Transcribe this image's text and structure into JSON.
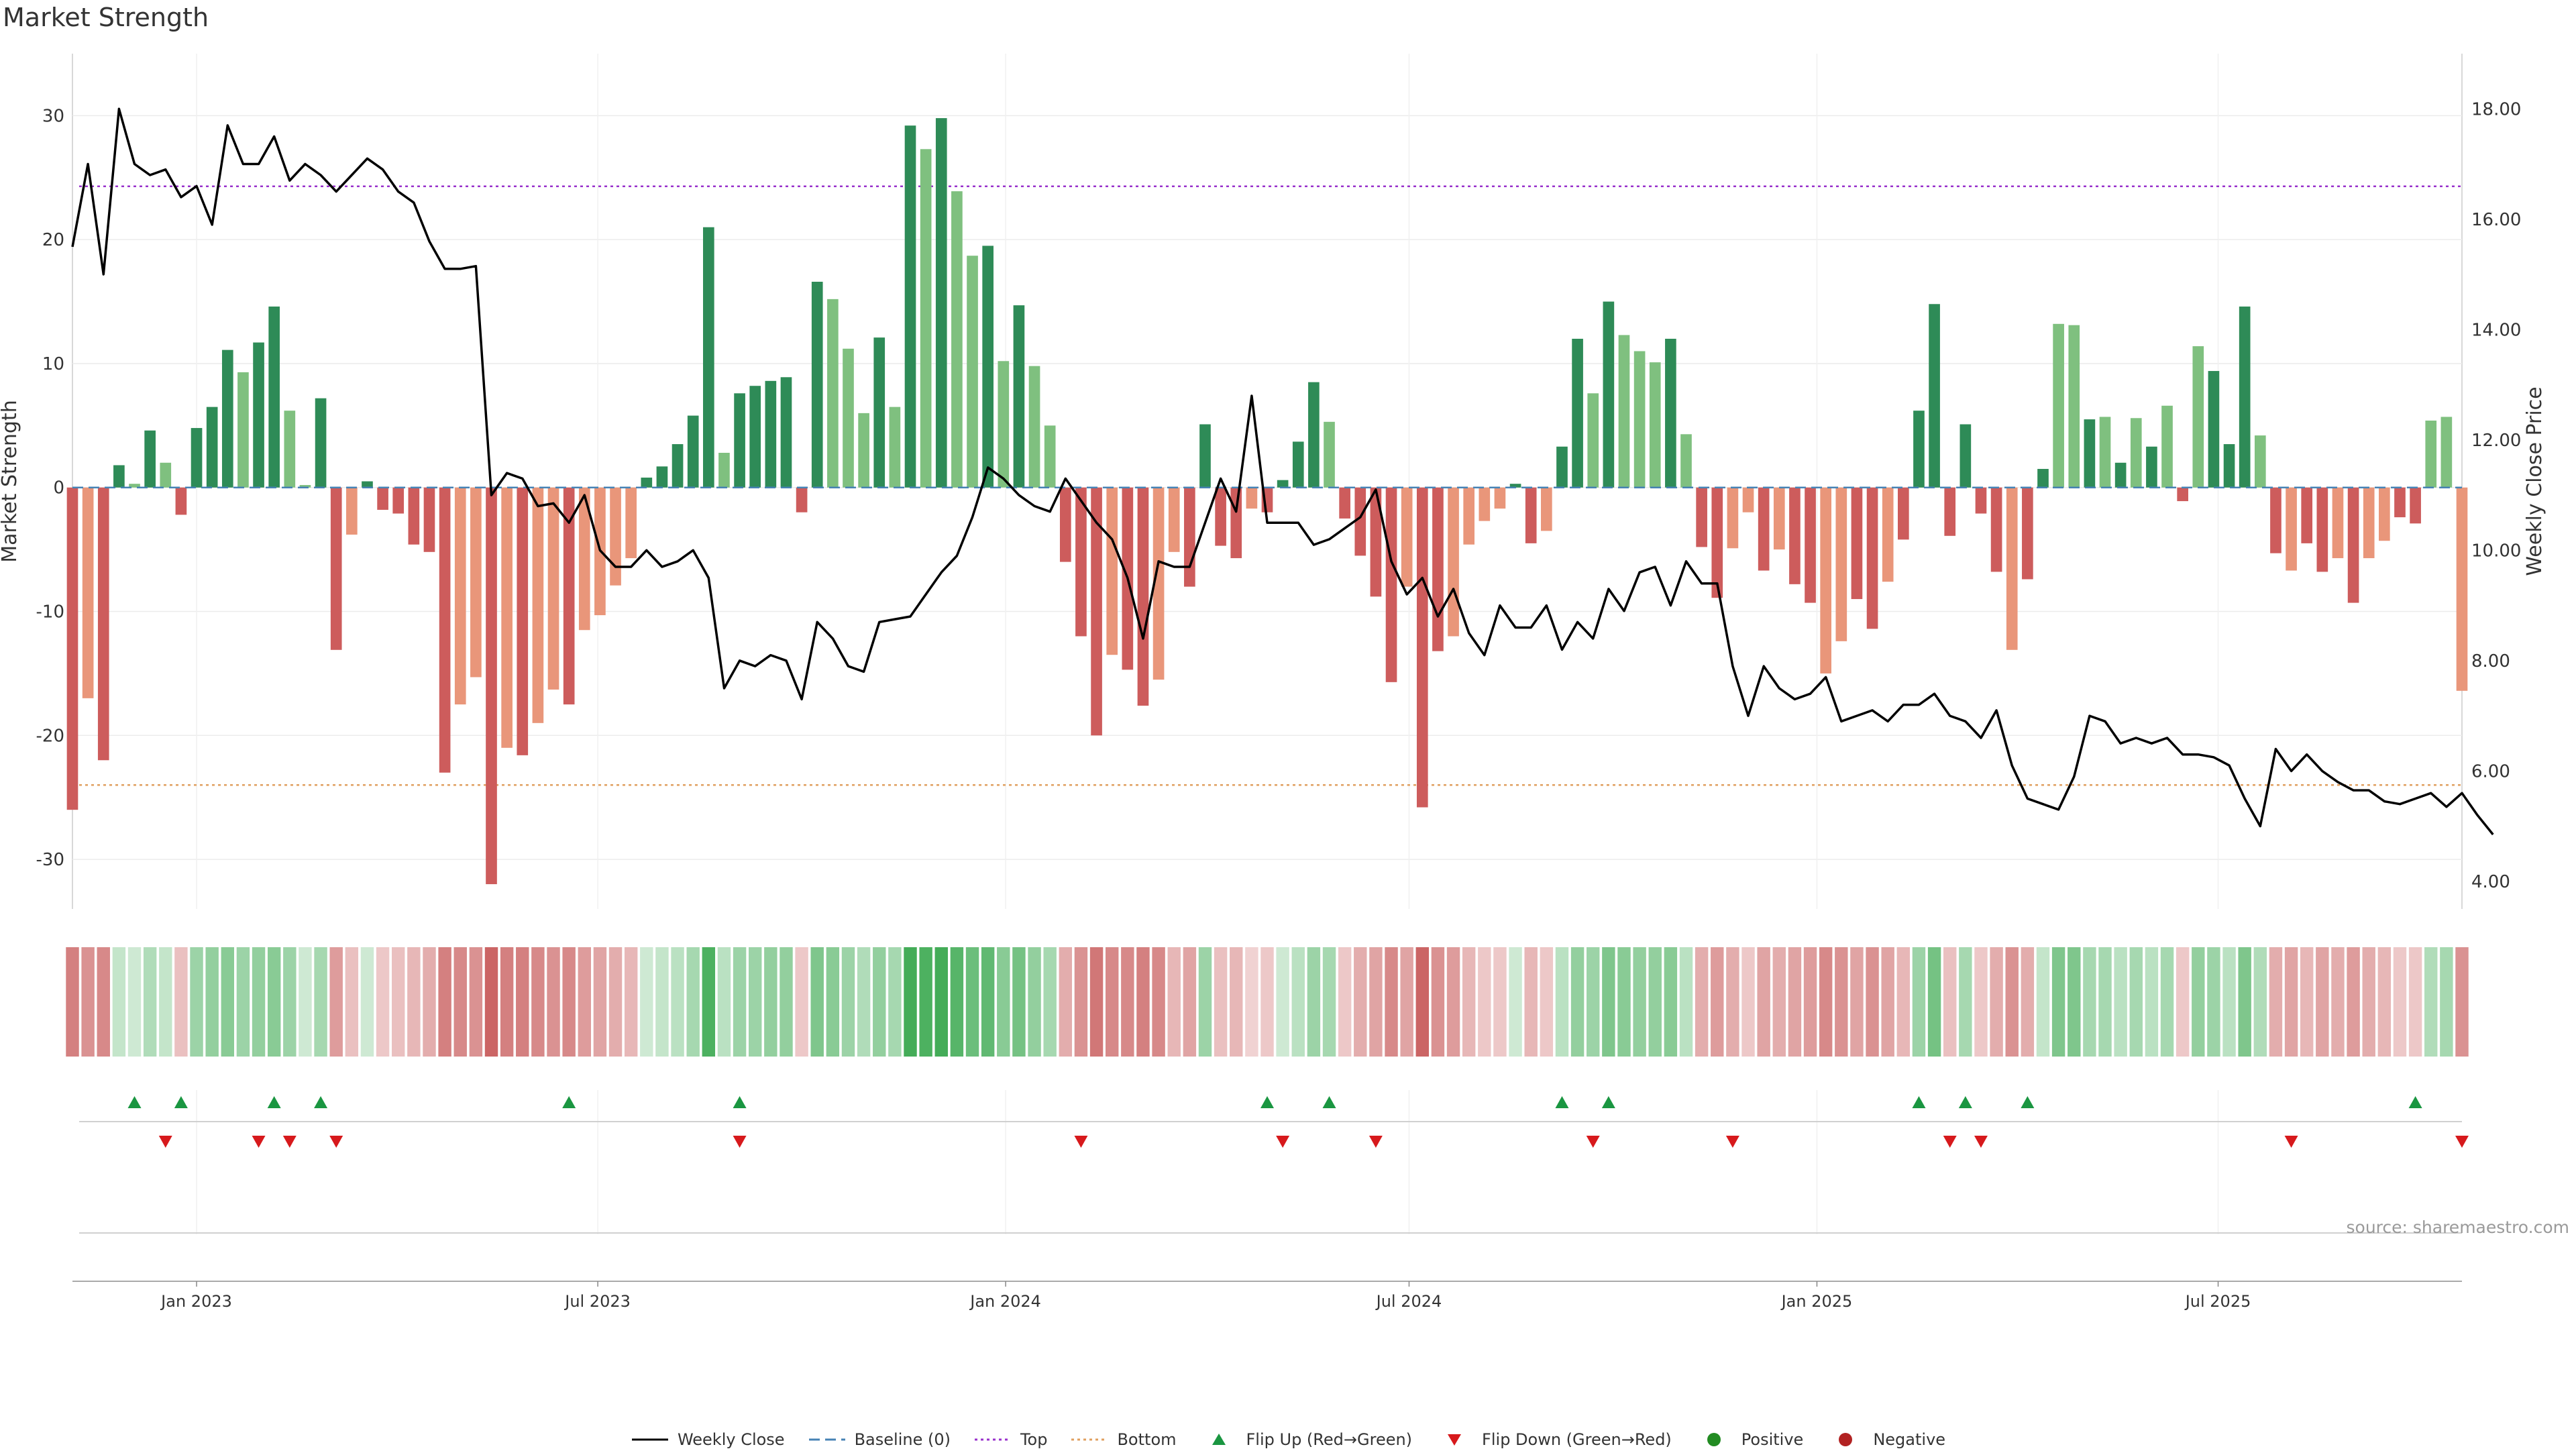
{
  "chart_data": {
    "type": "bar",
    "title": "Market Strength",
    "ylabel_left": "Market Strength",
    "ylabel_right": "Weekly Close Price",
    "ylim_left": [
      -34,
      35
    ],
    "yticks_left": [
      30,
      20,
      10,
      0,
      -10,
      -20,
      -30
    ],
    "ylim_right": [
      3.5,
      19
    ],
    "yticks_right": [
      "18.00",
      "16.00",
      "14.00",
      "12.00",
      "10.00",
      "8.00",
      "6.00",
      "4.00"
    ],
    "x_start": "2022-11-06",
    "x_end": "2025-10-19",
    "x_ticks": [
      {
        "date": "2023-01-01",
        "label": "Jan 2023"
      },
      {
        "date": "2023-07-01",
        "label": "Jul 2023"
      },
      {
        "date": "2024-01-01",
        "label": "Jan 2024"
      },
      {
        "date": "2024-07-01",
        "label": "Jul 2024"
      },
      {
        "date": "2025-01-01",
        "label": "Jan 2025"
      },
      {
        "date": "2025-07-01",
        "label": "Jul 2025"
      }
    ],
    "grid": true,
    "reference_lines": {
      "top": 24.3,
      "bottom": -24.0,
      "baseline": 0
    },
    "colors": {
      "up_strong": "#2e8b57",
      "up_weak": "#7fc07f",
      "down_strong": "#cd5c5c",
      "down_weak": "#e9967a",
      "close_line": "#000000",
      "baseline": "#4682b4",
      "top": "#9932cc",
      "bottom": "#e0a060",
      "flip_up": "#1a9641",
      "flip_down": "#d7191c",
      "positive": "#228b22",
      "negative": "#b22222"
    },
    "strength": [
      -26,
      -17,
      -22,
      1.8,
      0.3,
      4.6,
      2.0,
      -2.2,
      4.8,
      6.5,
      11.1,
      9.3,
      11.7,
      14.6,
      6.2,
      0.2,
      7.2,
      -13.1,
      -3.8,
      0.5,
      -1.8,
      -2.1,
      -4.6,
      -5.2,
      -23,
      -17.5,
      -15.3,
      -32,
      -21,
      -21.6,
      -19,
      -16.3,
      -17.5,
      -11.5,
      -10.3,
      -7.9,
      -5.7,
      0.8,
      1.7,
      3.5,
      5.8,
      21,
      2.8,
      7.6,
      8.2,
      8.6,
      8.9,
      -2,
      16.6,
      15.2,
      11.2,
      6,
      12.1,
      6.5,
      29.2,
      27.3,
      29.8,
      23.9,
      18.7,
      19.5,
      10.2,
      14.7,
      9.8,
      5,
      -6,
      -12,
      -20,
      -13.5,
      -14.7,
      -17.6,
      -15.5,
      -5.2,
      -8,
      5.1,
      -4.7,
      -5.7,
      -1.7,
      -2,
      0.6,
      3.7,
      8.5,
      5.3,
      -2.5,
      -5.5,
      -8.8,
      -15.7,
      -8,
      -25.8,
      -13.2,
      -12,
      -4.6,
      -2.7,
      -1.7,
      0.3,
      -4.5,
      -3.5,
      3.3,
      12,
      7.6,
      15,
      12.3,
      11,
      10.1,
      12,
      4.3,
      -4.8,
      -8.9,
      -4.9,
      -2,
      -6.7,
      -5,
      -7.8,
      -9.3,
      -15,
      -12.4,
      -9,
      -11.4,
      -7.6,
      -4.2,
      6.2,
      14.8,
      -3.9,
      5.1,
      -2.1,
      -6.8,
      -13.1,
      -7.4,
      1.5,
      13.2,
      13.1,
      5.5,
      5.7,
      2,
      5.6,
      3.3,
      6.6,
      -1.1,
      11.4,
      9.4,
      3.5,
      14.6,
      4.2,
      -5.3,
      -6.7,
      -4.5,
      -6.8,
      -5.7,
      -9.3,
      -5.7,
      -4.3,
      -2.4,
      -2.9,
      5.4,
      5.7,
      -16.4
    ],
    "strength_intensity": [
      2,
      1,
      2,
      2,
      1,
      2,
      1,
      2,
      2,
      2,
      2,
      1,
      2,
      2,
      1,
      1,
      2,
      2,
      1,
      2,
      2,
      2,
      2,
      2,
      2,
      1,
      1,
      2,
      1,
      2,
      1,
      1,
      2,
      1,
      1,
      1,
      1,
      2,
      2,
      2,
      2,
      2,
      1,
      2,
      2,
      2,
      2,
      2,
      2,
      1,
      1,
      1,
      2,
      1,
      2,
      1,
      2,
      1,
      1,
      2,
      1,
      2,
      1,
      1,
      2,
      2,
      2,
      1,
      2,
      2,
      1,
      1,
      2,
      2,
      2,
      2,
      1,
      2,
      2,
      2,
      2,
      1,
      2,
      2,
      2,
      2,
      1,
      2,
      2,
      1,
      1,
      1,
      1,
      2,
      2,
      1,
      2,
      2,
      1,
      2,
      1,
      1,
      1,
      2,
      1,
      2,
      2,
      1,
      1,
      2,
      1,
      2,
      2,
      1,
      1,
      2,
      2,
      1,
      2,
      2,
      2,
      2,
      2,
      2,
      2,
      1,
      2,
      2,
      1,
      1,
      2,
      1,
      2,
      1,
      2,
      1,
      2,
      1,
      2,
      2,
      2,
      1,
      2,
      1,
      2,
      2,
      1,
      2,
      1,
      1,
      2,
      2
    ],
    "weekly_close": [
      15.5,
      17,
      15,
      18,
      17,
      16.8,
      16.9,
      16.4,
      16.6,
      15.9,
      17.7,
      17,
      17,
      17.5,
      16.7,
      17.0,
      16.8,
      16.5,
      16.8,
      17.1,
      16.9,
      16.5,
      16.3,
      15.6,
      15.1,
      15.1,
      15.15,
      11.0,
      11.4,
      11.3,
      10.8,
      10.85,
      10.5,
      11.0,
      10.0,
      9.7,
      9.7,
      10.0,
      9.7,
      9.8,
      10.0,
      9.5,
      7.5,
      8.0,
      7.9,
      8.1,
      8.0,
      7.3,
      8.7,
      8.4,
      7.9,
      7.8,
      8.7,
      8.75,
      8.8,
      9.2,
      9.6,
      9.9,
      10.6,
      11.5,
      11.3,
      11.0,
      10.8,
      10.7,
      11.3,
      10.9,
      10.5,
      10.2,
      9.5,
      8.4,
      9.8,
      9.7,
      9.7,
      10.5,
      11.3,
      10.7,
      12.8,
      10.5,
      10.5,
      10.5,
      10.1,
      10.2,
      10.4,
      10.6,
      11.1,
      9.8,
      9.2,
      9.5,
      8.8,
      9.3,
      8.5,
      8.1,
      9.0,
      8.6,
      8.6,
      9.0,
      8.2,
      8.7,
      8.4,
      9.3,
      8.9,
      9.6,
      9.7,
      9.0,
      9.8,
      9.4,
      9.4,
      7.9,
      7.0,
      7.9,
      7.5,
      7.3,
      7.4,
      7.7,
      6.9,
      7.0,
      7.1,
      6.9,
      7.2,
      7.2,
      7.4,
      7.0,
      6.9,
      6.6,
      7.1,
      6.1,
      5.5,
      5.4,
      5.3,
      5.9,
      7.0,
      6.9,
      6.5,
      6.6,
      6.5,
      6.6,
      6.3,
      6.3,
      6.25,
      6.1,
      5.5,
      5.0,
      6.4,
      6.0,
      6.3,
      6.0,
      5.8,
      5.65,
      5.65,
      5.45,
      5.4,
      5.5,
      5.6,
      5.35,
      5.6,
      5.2,
      4.85
    ],
    "band_alpha": [
      0.7,
      0.6,
      0.65,
      0.3,
      0.25,
      0.4,
      0.3,
      0.35,
      0.5,
      0.55,
      0.6,
      0.5,
      0.55,
      0.6,
      0.5,
      0.25,
      0.45,
      0.55,
      0.35,
      0.25,
      0.3,
      0.35,
      0.4,
      0.45,
      0.7,
      0.65,
      0.6,
      0.85,
      0.7,
      0.7,
      0.65,
      0.6,
      0.65,
      0.55,
      0.5,
      0.45,
      0.4,
      0.25,
      0.3,
      0.35,
      0.45,
      0.9,
      0.35,
      0.5,
      0.5,
      0.55,
      0.55,
      0.3,
      0.65,
      0.6,
      0.5,
      0.4,
      0.55,
      0.45,
      0.95,
      0.9,
      0.95,
      0.85,
      0.75,
      0.8,
      0.6,
      0.7,
      0.55,
      0.45,
      0.45,
      0.6,
      0.75,
      0.65,
      0.65,
      0.7,
      0.65,
      0.4,
      0.5,
      0.5,
      0.35,
      0.4,
      0.25,
      0.3,
      0.25,
      0.35,
      0.5,
      0.45,
      0.3,
      0.45,
      0.5,
      0.65,
      0.5,
      0.85,
      0.6,
      0.55,
      0.4,
      0.3,
      0.3,
      0.25,
      0.4,
      0.3,
      0.35,
      0.55,
      0.5,
      0.65,
      0.6,
      0.55,
      0.55,
      0.6,
      0.35,
      0.45,
      0.55,
      0.45,
      0.3,
      0.5,
      0.45,
      0.5,
      0.55,
      0.65,
      0.6,
      0.5,
      0.6,
      0.5,
      0.4,
      0.5,
      0.7,
      0.35,
      0.45,
      0.3,
      0.45,
      0.6,
      0.45,
      0.3,
      0.65,
      0.65,
      0.45,
      0.45,
      0.35,
      0.45,
      0.35,
      0.45,
      0.3,
      0.55,
      0.5,
      0.35,
      0.65,
      0.4,
      0.45,
      0.5,
      0.4,
      0.5,
      0.45,
      0.55,
      0.45,
      0.4,
      0.3,
      0.3,
      0.4,
      0.45,
      0.6
    ],
    "flip_up_dates": [
      "2022-12-04",
      "2022-12-25",
      "2023-02-05",
      "2023-02-26",
      "2023-06-18",
      "2023-09-03",
      "2024-04-28",
      "2024-05-26",
      "2024-09-08",
      "2024-09-29",
      "2025-02-16",
      "2025-03-09",
      "2025-04-06",
      "2025-09-28"
    ],
    "flip_down_dates": [
      "2022-12-18",
      "2023-01-29",
      "2023-02-12",
      "2023-03-05",
      "2023-09-03",
      "2024-02-04",
      "2024-05-05",
      "2024-06-16",
      "2024-09-22",
      "2024-11-24",
      "2025-03-02",
      "2025-03-16",
      "2025-08-03",
      "2025-10-19"
    ],
    "legend": [
      {
        "key": "close",
        "label": "Weekly Close"
      },
      {
        "key": "baseline",
        "label": "Baseline (0)"
      },
      {
        "key": "top",
        "label": "Top"
      },
      {
        "key": "bottom",
        "label": "Bottom"
      },
      {
        "key": "flip_up",
        "label": "Flip Up (Red→Green)"
      },
      {
        "key": "flip_down",
        "label": "Flip Down (Green→Red)"
      },
      {
        "key": "positive",
        "label": "Positive"
      },
      {
        "key": "negative",
        "label": "Negative"
      }
    ],
    "legend_position": "bottom-center",
    "source": "source: sharemaestro.com"
  }
}
